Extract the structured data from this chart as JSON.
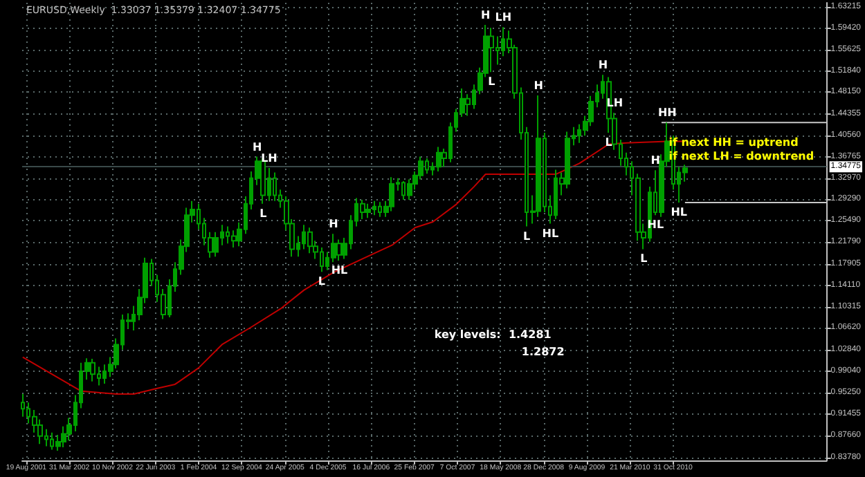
{
  "chart_data": {
    "type": "candlestick",
    "title": "EURUSD,Weekly  1.33037 1.35379 1.32407 1.34775",
    "xlim": [
      "2001-07-29",
      "2013-01-06"
    ],
    "xticks": [
      {
        "value": "2001-08-19",
        "label": "19 Aug 2001"
      },
      {
        "value": "2002-03-31",
        "label": "31 Mar 2002"
      },
      {
        "value": "2002-11-10",
        "label": "10 Nov 2002"
      },
      {
        "value": "2003-06-22",
        "label": "22 Jun 2003"
      },
      {
        "value": "2004-02-01",
        "label": "1 Feb 2004"
      },
      {
        "value": "2004-09-12",
        "label": "12 Sep 2004"
      },
      {
        "value": "2005-04-24",
        "label": "24 Apr 2005"
      },
      {
        "value": "2005-12-04",
        "label": "4 Dec 2005"
      },
      {
        "value": "2006-07-16",
        "label": "16 Jul 2006"
      },
      {
        "value": "2007-02-25",
        "label": "25 Feb 2007"
      },
      {
        "value": "2007-10-07",
        "label": "7 Oct 2007"
      },
      {
        "value": "2008-05-18",
        "label": "18 May 2008"
      },
      {
        "value": "2008-12-28",
        "label": "28 Dec 2008"
      },
      {
        "value": "2009-08-09",
        "label": "9 Aug 2009"
      },
      {
        "value": "2010-03-21",
        "label": "21 Mar 2010"
      },
      {
        "value": "2010-10-31",
        "label": "31 Oct 2010"
      }
    ],
    "ylim": [
      0.833,
      1.639
    ],
    "yticks": [
      {
        "value": 0.8378,
        "label": "0.83780"
      },
      {
        "value": 0.8766,
        "label": "0.87660"
      },
      {
        "value": 0.91455,
        "label": "0.91455"
      },
      {
        "value": 0.9525,
        "label": "0.95250"
      },
      {
        "value": 0.9904,
        "label": "0.99040"
      },
      {
        "value": 1.0284,
        "label": "1.02840"
      },
      {
        "value": 1.0662,
        "label": "1.06620"
      },
      {
        "value": 1.10315,
        "label": "1.10315"
      },
      {
        "value": 1.1411,
        "label": "1.14110"
      },
      {
        "value": 1.17905,
        "label": "1.17905"
      },
      {
        "value": 1.2179,
        "label": "1.21790"
      },
      {
        "value": 1.2549,
        "label": "1.25490"
      },
      {
        "value": 1.2929,
        "label": "1.29290"
      },
      {
        "value": 1.3297,
        "label": "1.32970"
      },
      {
        "value": 1.36765,
        "label": "1.36765"
      },
      {
        "value": 1.4056,
        "label": "1.40560"
      },
      {
        "value": 1.44355,
        "label": "1.44355"
      },
      {
        "value": 1.4815,
        "label": "1.48150"
      },
      {
        "value": 1.5184,
        "label": "1.51840"
      },
      {
        "value": 1.55625,
        "label": "1.55625"
      },
      {
        "value": 1.5942,
        "label": "1.59420"
      },
      {
        "value": 1.63215,
        "label": "1.63215"
      }
    ],
    "grid": true,
    "series": [
      {
        "color": "#00a000",
        "x": [
          "2001-08",
          "2001-09",
          "2001-10",
          "2001-11",
          "2001-12",
          "2002-01",
          "2002-02",
          "2002-03",
          "2002-04",
          "2002-05",
          "2002-06",
          "2002-07",
          "2002-08",
          "2002-09",
          "2002-10",
          "2002-11",
          "2002-12",
          "2003-01",
          "2003-02",
          "2003-03",
          "2003-04",
          "2003-05",
          "2003-06",
          "2003-07",
          "2003-08",
          "2003-09",
          "2003-10",
          "2003-11",
          "2003-12",
          "2004-01",
          "2004-02",
          "2004-03",
          "2004-04",
          "2004-05",
          "2004-06",
          "2004-07",
          "2004-08",
          "2004-09",
          "2004-10",
          "2004-11",
          "2004-12",
          "2005-01",
          "2005-02",
          "2005-03",
          "2005-04",
          "2005-05",
          "2005-06",
          "2005-07",
          "2005-08",
          "2005-09",
          "2005-10",
          "2005-11",
          "2005-12",
          "2006-01",
          "2006-02",
          "2006-03",
          "2006-04",
          "2006-05",
          "2006-06",
          "2006-07",
          "2006-08",
          "2006-09",
          "2006-10",
          "2006-11",
          "2006-12",
          "2007-01",
          "2007-02",
          "2007-03",
          "2007-04",
          "2007-05",
          "2007-06",
          "2007-07",
          "2007-08",
          "2007-09",
          "2007-10",
          "2007-11",
          "2007-12",
          "2008-01",
          "2008-02",
          "2008-03",
          "2008-04",
          "2008-05",
          "2008-06",
          "2008-07",
          "2008-08",
          "2008-09",
          "2008-10",
          "2008-11",
          "2008-12",
          "2009-01",
          "2009-02",
          "2009-03",
          "2009-04",
          "2009-05",
          "2009-06",
          "2009-07",
          "2009-08",
          "2009-09",
          "2009-10",
          "2009-11",
          "2009-12",
          "2010-01",
          "2010-02",
          "2010-03",
          "2010-04",
          "2010-05",
          "2010-06",
          "2010-07",
          "2010-08",
          "2010-09",
          "2010-10",
          "2010-11",
          "2010-12",
          "2011-01"
        ],
        "ohlc": [
          [
            0.935,
            0.95,
            0.91,
            0.924
          ],
          [
            0.924,
            0.935,
            0.898,
            0.91
          ],
          [
            0.91,
            0.922,
            0.882,
            0.895
          ],
          [
            0.895,
            0.905,
            0.862,
            0.876
          ],
          [
            0.876,
            0.888,
            0.858,
            0.87
          ],
          [
            0.87,
            0.882,
            0.852,
            0.858
          ],
          [
            0.858,
            0.878,
            0.85,
            0.866
          ],
          [
            0.866,
            0.893,
            0.856,
            0.88
          ],
          [
            0.88,
            0.908,
            0.868,
            0.895
          ],
          [
            0.895,
            0.948,
            0.884,
            0.935
          ],
          [
            0.935,
            1.005,
            0.925,
            0.99
          ],
          [
            0.99,
            1.013,
            0.975,
            1.005
          ],
          [
            1.005,
            1.012,
            0.972,
            0.985
          ],
          [
            0.985,
            0.998,
            0.965,
            0.978
          ],
          [
            0.978,
            1.002,
            0.968,
            0.99
          ],
          [
            0.99,
            1.015,
            0.98,
            1.002
          ],
          [
            1.002,
            1.048,
            0.995,
            1.037
          ],
          [
            1.037,
            1.09,
            1.028,
            1.08
          ],
          [
            1.08,
            1.092,
            1.065,
            1.078
          ],
          [
            1.078,
            1.105,
            1.062,
            1.09
          ],
          [
            1.09,
            1.135,
            1.08,
            1.12
          ],
          [
            1.12,
            1.19,
            1.11,
            1.18
          ],
          [
            1.18,
            1.188,
            1.14,
            1.15
          ],
          [
            1.15,
            1.16,
            1.112,
            1.125
          ],
          [
            1.125,
            1.135,
            1.082,
            1.09
          ],
          [
            1.09,
            1.152,
            1.085,
            1.14
          ],
          [
            1.14,
            1.182,
            1.13,
            1.17
          ],
          [
            1.17,
            1.222,
            1.16,
            1.21
          ],
          [
            1.21,
            1.278,
            1.2,
            1.265
          ],
          [
            1.265,
            1.29,
            1.252,
            1.275
          ],
          [
            1.275,
            1.285,
            1.24,
            1.25
          ],
          [
            1.25,
            1.26,
            1.212,
            1.225
          ],
          [
            1.225,
            1.235,
            1.19,
            1.2
          ],
          [
            1.2,
            1.235,
            1.192,
            1.225
          ],
          [
            1.225,
            1.248,
            1.212,
            1.235
          ],
          [
            1.235,
            1.245,
            1.215,
            1.228
          ],
          [
            1.228,
            1.238,
            1.208,
            1.22
          ],
          [
            1.22,
            1.252,
            1.21,
            1.24
          ],
          [
            1.24,
            1.298,
            1.232,
            1.285
          ],
          [
            1.285,
            1.342,
            1.275,
            1.33
          ],
          [
            1.33,
            1.368,
            1.318,
            1.36
          ],
          [
            1.36,
            1.365,
            1.285,
            1.3
          ],
          [
            1.3,
            1.348,
            1.29,
            1.33
          ],
          [
            1.33,
            1.34,
            1.29,
            1.3
          ],
          [
            1.3,
            1.31,
            1.278,
            1.29
          ],
          [
            1.29,
            1.298,
            1.238,
            1.25
          ],
          [
            1.25,
            1.258,
            1.192,
            1.205
          ],
          [
            1.205,
            1.228,
            1.192,
            1.215
          ],
          [
            1.215,
            1.248,
            1.205,
            1.235
          ],
          [
            1.235,
            1.243,
            1.198,
            1.21
          ],
          [
            1.21,
            1.22,
            1.188,
            1.2
          ],
          [
            1.2,
            1.208,
            1.165,
            1.175
          ],
          [
            1.175,
            1.2,
            1.168,
            1.19
          ],
          [
            1.19,
            1.232,
            1.182,
            1.215
          ],
          [
            1.215,
            1.222,
            1.185,
            1.195
          ],
          [
            1.195,
            1.225,
            1.188,
            1.215
          ],
          [
            1.215,
            1.265,
            1.205,
            1.255
          ],
          [
            1.255,
            1.295,
            1.245,
            1.285
          ],
          [
            1.285,
            1.292,
            1.258,
            1.27
          ],
          [
            1.27,
            1.285,
            1.26,
            1.275
          ],
          [
            1.275,
            1.29,
            1.265,
            1.28
          ],
          [
            1.28,
            1.288,
            1.262,
            1.27
          ],
          [
            1.27,
            1.29,
            1.262,
            1.28
          ],
          [
            1.28,
            1.332,
            1.272,
            1.32
          ],
          [
            1.32,
            1.33,
            1.308,
            1.322
          ],
          [
            1.322,
            1.325,
            1.292,
            1.3
          ],
          [
            1.3,
            1.328,
            1.292,
            1.32
          ],
          [
            1.32,
            1.342,
            1.31,
            1.335
          ],
          [
            1.335,
            1.368,
            1.328,
            1.36
          ],
          [
            1.36,
            1.365,
            1.338,
            1.345
          ],
          [
            1.345,
            1.358,
            1.335,
            1.35
          ],
          [
            1.35,
            1.385,
            1.342,
            1.375
          ],
          [
            1.375,
            1.382,
            1.35,
            1.365
          ],
          [
            1.365,
            1.428,
            1.358,
            1.42
          ],
          [
            1.42,
            1.452,
            1.412,
            1.445
          ],
          [
            1.445,
            1.488,
            1.438,
            1.47
          ],
          [
            1.47,
            1.478,
            1.44,
            1.46
          ],
          [
            1.46,
            1.495,
            1.452,
            1.485
          ],
          [
            1.485,
            1.525,
            1.478,
            1.515
          ],
          [
            1.515,
            1.6,
            1.508,
            1.58
          ],
          [
            1.58,
            1.595,
            1.517,
            1.56
          ],
          [
            1.56,
            1.58,
            1.53,
            1.555
          ],
          [
            1.555,
            1.596,
            1.545,
            1.575
          ],
          [
            1.575,
            1.59,
            1.55,
            1.56
          ],
          [
            1.56,
            1.565,
            1.47,
            1.48
          ],
          [
            1.48,
            1.49,
            1.398,
            1.41
          ],
          [
            1.41,
            1.42,
            1.245,
            1.27
          ],
          [
            1.27,
            1.3,
            1.25,
            1.272
          ],
          [
            1.272,
            1.476,
            1.262,
            1.4
          ],
          [
            1.4,
            1.41,
            1.27,
            1.28
          ],
          [
            1.28,
            1.3,
            1.25,
            1.265
          ],
          [
            1.265,
            1.345,
            1.258,
            1.33
          ],
          [
            1.33,
            1.34,
            1.3,
            1.32
          ],
          [
            1.32,
            1.412,
            1.312,
            1.4
          ],
          [
            1.4,
            1.42,
            1.388,
            1.405
          ],
          [
            1.405,
            1.425,
            1.392,
            1.415
          ],
          [
            1.415,
            1.44,
            1.405,
            1.43
          ],
          [
            1.43,
            1.475,
            1.422,
            1.465
          ],
          [
            1.465,
            1.495,
            1.455,
            1.48
          ],
          [
            1.48,
            1.512,
            1.47,
            1.5
          ],
          [
            1.5,
            1.508,
            1.41,
            1.435
          ],
          [
            1.435,
            1.445,
            1.38,
            1.39
          ],
          [
            1.39,
            1.398,
            1.352,
            1.365
          ],
          [
            1.365,
            1.375,
            1.335,
            1.35
          ],
          [
            1.35,
            1.36,
            1.3,
            1.33
          ],
          [
            1.33,
            1.338,
            1.22,
            1.235
          ],
          [
            1.235,
            1.25,
            1.205,
            1.225
          ],
          [
            1.225,
            1.315,
            1.218,
            1.305
          ],
          [
            1.305,
            1.344,
            1.265,
            1.27
          ],
          [
            1.27,
            1.372,
            1.262,
            1.36
          ],
          [
            1.36,
            1.4281,
            1.35,
            1.395
          ],
          [
            1.395,
            1.405,
            1.31,
            1.32
          ],
          [
            1.32,
            1.35,
            1.2872,
            1.34
          ],
          [
            1.34,
            1.35379,
            1.32407,
            1.34775
          ]
        ]
      },
      {
        "type": "line",
        "color": "#c00000",
        "x": [
          "2001-08",
          "2002-06",
          "2002-12",
          "2003-03",
          "2003-07",
          "2003-10",
          "2004-02",
          "2004-06",
          "2004-11",
          "2005-04",
          "2005-08",
          "2006-01",
          "2006-06",
          "2006-11",
          "2007-03",
          "2007-06",
          "2007-10",
          "2008-01",
          "2008-03",
          "2008-09",
          "2009-03",
          "2009-07",
          "2009-12",
          "2010-03",
          "2010-10",
          "2011-01"
        ],
        "values": [
          1.015,
          0.955,
          0.95,
          0.95,
          0.96,
          0.967,
          0.996,
          1.037,
          1.068,
          1.1,
          1.133,
          1.164,
          1.188,
          1.212,
          1.243,
          1.253,
          1.284,
          1.315,
          1.337,
          1.337,
          1.337,
          1.356,
          1.39,
          1.392,
          1.395,
          1.395
        ]
      },
      {
        "type": "line",
        "color": "#c8c8c8",
        "x": [
          "2010-09",
          "2013-01-06"
        ],
        "values": [
          1.4281,
          1.4281
        ]
      },
      {
        "type": "line",
        "color": "#c8c8c8",
        "x": [
          "2011-01",
          "2013-01-06"
        ],
        "values": [
          1.2872,
          1.2872
        ]
      }
    ],
    "ref_lines": [
      {
        "axis": "y",
        "value": 1.34775,
        "label": "1.34775",
        "color": "#3a4a4a"
      }
    ],
    "annotations": [
      {
        "text": "H",
        "x": "2004-12",
        "y": 1.368
      },
      {
        "text": "L",
        "x": "2005-01",
        "y": 1.285
      },
      {
        "text": "LH",
        "x": "2005-02",
        "y": 1.348
      },
      {
        "text": "L",
        "x": "2005-11",
        "y": 1.165
      },
      {
        "text": "H",
        "x": "2006-01",
        "y": 1.232
      },
      {
        "text": "HL",
        "x": "2006-02",
        "y": 1.185
      },
      {
        "text": "H",
        "x": "2008-03",
        "y": 1.6
      },
      {
        "text": "L",
        "x": "2008-04",
        "y": 1.517
      },
      {
        "text": "LH",
        "x": "2008-06",
        "y": 1.596
      },
      {
        "text": "L",
        "x": "2008-10",
        "y": 1.245
      },
      {
        "text": "H",
        "x": "2008-12",
        "y": 1.476
      },
      {
        "text": "HL",
        "x": "2009-02",
        "y": 1.25
      },
      {
        "text": "H",
        "x": "2009-11",
        "y": 1.512
      },
      {
        "text": "L",
        "x": "2009-12",
        "y": 1.41
      },
      {
        "text": "LH",
        "x": "2010-01",
        "y": 1.445
      },
      {
        "text": "L",
        "x": "2010-06",
        "y": 1.205
      },
      {
        "text": "H",
        "x": "2010-08",
        "y": 1.344
      },
      {
        "text": "HL",
        "x": "2010-08",
        "y": 1.265
      },
      {
        "text": "HH",
        "x": "2010-10",
        "y": 1.4281
      },
      {
        "text": "HL",
        "x": "2010-12",
        "y": 1.2872
      },
      "if next HH = uptrend",
      "if next LH = downtrend",
      "key levels:  1.4281",
      "1.2872"
    ]
  }
}
